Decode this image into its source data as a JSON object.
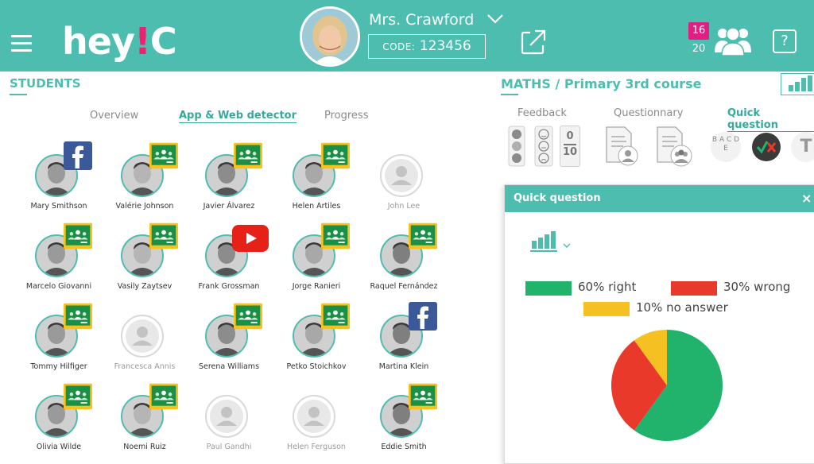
{
  "header": {
    "logo_main": "hey",
    "logo_bang": "!",
    "logo_end": "C",
    "teacher_name": "Mrs. Crawford",
    "code_label": "CODE:",
    "code_value": "123456",
    "connected_count": "16",
    "total_count": "20",
    "help_label": "?"
  },
  "students_panel": {
    "title": "STUDENTS",
    "tabs": [
      "Overview",
      "App & Web detector",
      "Progress"
    ],
    "active_tab": "App & Web detector",
    "students": [
      {
        "name": "Mary Smithson",
        "app": "facebook",
        "photo": true
      },
      {
        "name": "Valérie Johnson",
        "app": "classroom",
        "photo": true
      },
      {
        "name": "Javier Álvarez",
        "app": "classroom",
        "photo": true
      },
      {
        "name": "Helen Artiles",
        "app": "classroom",
        "photo": true
      },
      {
        "name": "John Lee",
        "app": "",
        "photo": false
      },
      {
        "name": "Marcelo Giovanni",
        "app": "classroom",
        "photo": true
      },
      {
        "name": "Vasily Zaytsev",
        "app": "classroom",
        "photo": true
      },
      {
        "name": "Frank Grossman",
        "app": "youtube",
        "photo": true
      },
      {
        "name": "Jorge Ranieri",
        "app": "classroom",
        "photo": true
      },
      {
        "name": "Raquel Fernández",
        "app": "classroom",
        "photo": true
      },
      {
        "name": "Tommy Hilfiger",
        "app": "classroom",
        "photo": true
      },
      {
        "name": "Francesca Annis",
        "app": "",
        "photo": false
      },
      {
        "name": "Serena Williams",
        "app": "classroom",
        "photo": true
      },
      {
        "name": "Petko Stoichkov",
        "app": "classroom",
        "photo": true
      },
      {
        "name": "Martina Klein",
        "app": "facebook",
        "photo": true
      },
      {
        "name": "Olivia Wilde",
        "app": "classroom",
        "photo": true
      },
      {
        "name": "Noemi Ruiz",
        "app": "classroom",
        "photo": true
      },
      {
        "name": "Paul Gandhi",
        "app": "",
        "photo": false
      },
      {
        "name": "Helen Ferguson",
        "app": "",
        "photo": false
      },
      {
        "name": "Eddie Smith",
        "app": "classroom",
        "photo": true
      }
    ]
  },
  "class_panel": {
    "title": "MATHS / Primary 3rd course",
    "tabs": [
      "Feedback",
      "Questionnary",
      "Quick question"
    ],
    "active_tab": "Quick question",
    "tools": [
      "traffic-light-icon",
      "smiley-scale-icon",
      "score-icon",
      "document-user-icon",
      "document-group-icon",
      "abcde-icon",
      "right-wrong-icon",
      "text-answer-icon"
    ],
    "score_top": "0",
    "score_bottom": "10",
    "abc_label": "B A C D E",
    "text_answer_label": "T"
  },
  "quick_question": {
    "title": "Quick question",
    "close_label": "×",
    "legend": [
      {
        "label": "60% right",
        "color": "#21b36c"
      },
      {
        "label": "30% wrong",
        "color": "#e8392b"
      },
      {
        "label": "10% no answer",
        "color": "#f5c021"
      }
    ]
  },
  "chart_data": {
    "type": "pie",
    "categories": [
      "right",
      "wrong",
      "no answer"
    ],
    "values": [
      60,
      30,
      10
    ],
    "colors": [
      "#21b36c",
      "#e8392b",
      "#f5c021"
    ],
    "title": "",
    "legend_position": "top"
  }
}
